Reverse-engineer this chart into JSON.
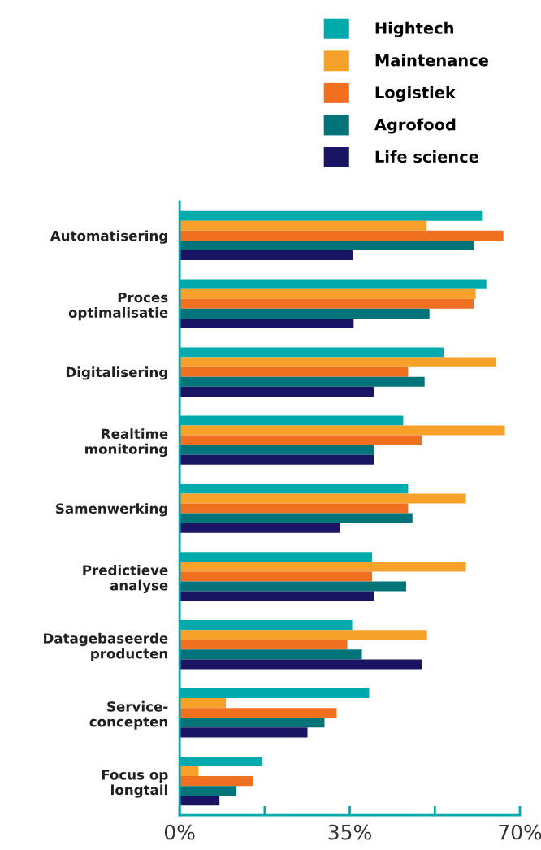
{
  "chart_data": {
    "type": "bar",
    "orientation": "horizontal",
    "categories": [
      "Automatisering",
      "Proces\noptimalisatie",
      "Digitalisering",
      "Realtime\nmonitoring",
      "Samenwerking",
      "Predictieve\nanalyse",
      "Datagebaseerde\nproducten",
      "Service-\nconcepten",
      "Focus op\nlongtail"
    ],
    "series": [
      {
        "name": "Hightech",
        "color": "#00a9ac",
        "values": [
          62.2,
          63.1,
          54.3,
          46.0,
          47.0,
          39.6,
          35.5,
          39.0,
          17.0
        ]
      },
      {
        "name": "Maintenance",
        "color": "#f7a12b",
        "values": [
          50.8,
          60.9,
          65.1,
          66.9,
          58.9,
          58.9,
          50.9,
          9.5,
          3.9
        ]
      },
      {
        "name": "Logistiek",
        "color": "#f07020",
        "values": [
          66.6,
          60.6,
          47.0,
          49.8,
          47.0,
          39.6,
          34.5,
          32.3,
          15.2
        ]
      },
      {
        "name": "Agrofood",
        "color": "#017479",
        "values": [
          60.6,
          51.4,
          50.4,
          40.0,
          47.9,
          46.6,
          37.5,
          29.8,
          11.7
        ]
      },
      {
        "name": "Life science",
        "color": "#1a1464",
        "values": [
          35.6,
          35.8,
          40.0,
          40.0,
          33.0,
          40.0,
          49.8,
          26.3,
          8.2
        ]
      }
    ],
    "xlim": [
      0,
      70
    ],
    "xticks": [
      {
        "value": 0,
        "label": "0%"
      },
      {
        "value": 17.5,
        "label": null
      },
      {
        "value": 35,
        "label": "35%"
      },
      {
        "value": 52.5,
        "label": null
      },
      {
        "value": 70,
        "label": "70%"
      }
    ],
    "grid": false,
    "legend": "top right"
  }
}
